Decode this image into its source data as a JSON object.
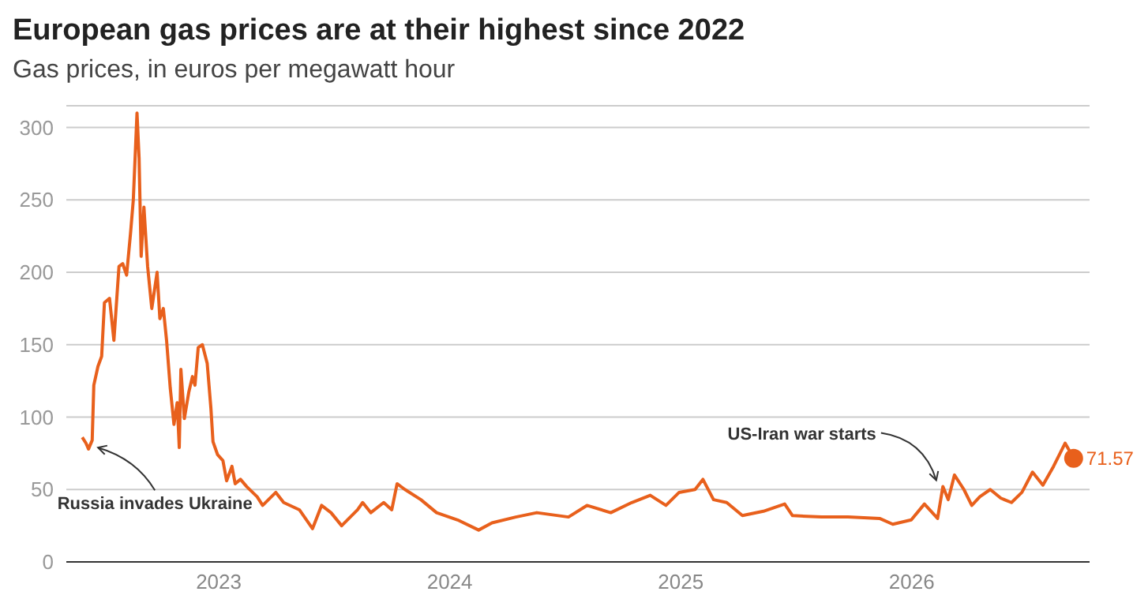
{
  "chart_data": {
    "type": "line",
    "title": "European gas prices are at their highest since 2022",
    "subtitle": "Gas prices, in euros per megawatt hour",
    "x": [
      2022.409,
      2022.425,
      2022.436,
      2022.452,
      2022.459,
      2022.477,
      2022.493,
      2022.505,
      2022.527,
      2022.546,
      2022.568,
      2022.584,
      2022.601,
      2022.618,
      2022.63,
      2022.646,
      2022.655,
      2022.664,
      2022.676,
      2022.692,
      2022.71,
      2022.733,
      2022.745,
      2022.76,
      2022.774,
      2022.79,
      2022.806,
      2022.82,
      2022.829,
      2022.836,
      2022.851,
      2022.87,
      2022.886,
      2022.897,
      2022.911,
      2022.929,
      2022.95,
      2022.966,
      2022.975,
      2022.995,
      2023.018,
      2023.034,
      2023.057,
      2023.071,
      2023.094,
      2023.121,
      2023.166,
      2023.19,
      2023.247,
      2023.281,
      2023.349,
      2023.406,
      2023.445,
      2023.486,
      2023.532,
      2023.601,
      2023.623,
      2023.658,
      2023.714,
      2023.749,
      2023.772,
      2023.806,
      2023.875,
      2023.943,
      2024.034,
      2024.125,
      2024.183,
      2024.286,
      2024.377,
      2024.514,
      2024.594,
      2024.697,
      2024.788,
      2024.868,
      2024.936,
      2024.993,
      2025.062,
      2025.096,
      2025.142,
      2025.199,
      2025.267,
      2025.358,
      2025.45,
      2025.484,
      2025.61,
      2025.724,
      2025.861,
      2025.918,
      2025.998,
      2026.055,
      2026.112,
      2026.135,
      2026.158,
      2026.185,
      2026.226,
      2026.26,
      2026.295,
      2026.34,
      2026.386,
      2026.432,
      2026.477,
      2026.523,
      2026.568,
      2026.614,
      2026.664,
      2026.682,
      2026.701
    ],
    "values": [
      86,
      82,
      78,
      84,
      122,
      135,
      142,
      179,
      182,
      153,
      204,
      206,
      198,
      227,
      250,
      310,
      279,
      211,
      245,
      204,
      175,
      200,
      168,
      175,
      153,
      120,
      95,
      110,
      79,
      133,
      99,
      117,
      128,
      122,
      148,
      150,
      137,
      106,
      83,
      74,
      70,
      56,
      66,
      54,
      57,
      52,
      45,
      39,
      48,
      41,
      36,
      23,
      39,
      34,
      25,
      36,
      41,
      34,
      41,
      36,
      54,
      50,
      43,
      34,
      29,
      22,
      27,
      31,
      34,
      31,
      39,
      34,
      41,
      46,
      39,
      48,
      50,
      57,
      43,
      41,
      32,
      35,
      40,
      32,
      31,
      31,
      30,
      26,
      29,
      40,
      30,
      52,
      43,
      60,
      50,
      39,
      45,
      50,
      44,
      41,
      48,
      62,
      53,
      66,
      82,
      77,
      71.57
    ],
    "value_labels": [
      null,
      null,
      null,
      null,
      null,
      null,
      null,
      null,
      null,
      null,
      null,
      null,
      null,
      null,
      null,
      null,
      null,
      null,
      null,
      null,
      null,
      null,
      null,
      null,
      null,
      null,
      null,
      null,
      null,
      null,
      null,
      null,
      null,
      null,
      null,
      null,
      null,
      null,
      null,
      null,
      null,
      null,
      null,
      null,
      null,
      null,
      null,
      null,
      null,
      null,
      null,
      null,
      null,
      null,
      null,
      null,
      null,
      null,
      null,
      null,
      null,
      null,
      null,
      null,
      null,
      null,
      null,
      null,
      null,
      null,
      null,
      null,
      null,
      null,
      null,
      null,
      null,
      null,
      null,
      null,
      null,
      null,
      null,
      null,
      null,
      null,
      null,
      null,
      null,
      null,
      null,
      null,
      null,
      null,
      null,
      null,
      null,
      null,
      null,
      null,
      null,
      null,
      null,
      null,
      null,
      null,
      "71.57"
    ],
    "color": "#e8601c",
    "xlim": [
      2022.34,
      2026.77
    ],
    "xticks": [
      2023,
      2024,
      2025,
      2026
    ],
    "ylim": [
      0,
      315
    ],
    "yticks": [
      0,
      50,
      100,
      150,
      200,
      250,
      300
    ],
    "grid": "y",
    "annotations": [
      {
        "text": "Russia invades Ukraine",
        "x": 2022.45,
        "y": 80
      },
      {
        "text": "US-Iran war starts",
        "x": 2026.12,
        "y": 52
      }
    ]
  }
}
